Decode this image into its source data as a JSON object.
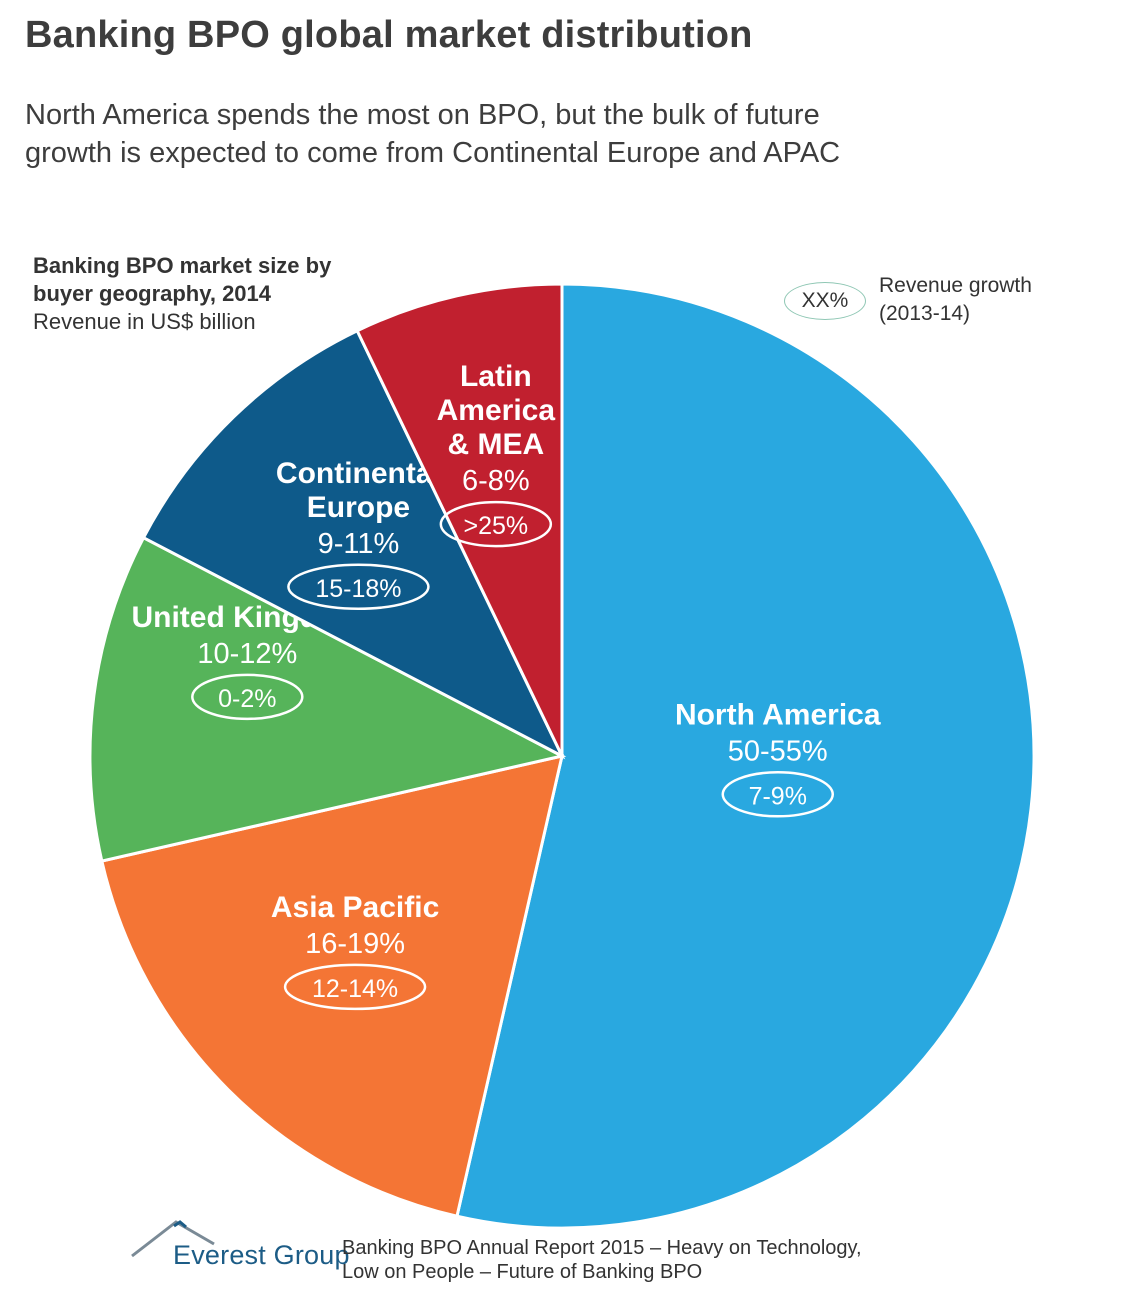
{
  "header": {
    "title": "Banking BPO global market distribution",
    "subtitle_line1": "North America spends the most on BPO, but the bulk of future",
    "subtitle_line2": "growth is expected to come from Continental Europe and APAC"
  },
  "caption": {
    "line1": "Banking BPO market size by",
    "line2": "buyer geography, 2014",
    "line3": "Revenue in US$ billion"
  },
  "legend": {
    "oval_label": "XX%",
    "text_line1": "Revenue growth",
    "text_line2": "(2013-14)"
  },
  "chart_data": {
    "type": "pie",
    "title": "Banking BPO market size by buyer geography, 2014",
    "unit": "Revenue in US$ billion",
    "slices": [
      {
        "name_lines": [
          "North America"
        ],
        "share_label": "50-55%",
        "growth_label": "7-9%",
        "value": 52.5,
        "color": "#29a8e0"
      },
      {
        "name_lines": [
          "Asia Pacific"
        ],
        "share_label": "16-19%",
        "growth_label": "12-14%",
        "value": 17.5,
        "color": "#f47535"
      },
      {
        "name_lines": [
          "United Kingdom"
        ],
        "share_label": "10-12%",
        "growth_label": "0-2%",
        "value": 11,
        "color": "#56b45a"
      },
      {
        "name_lines": [
          "Continental",
          "Europe"
        ],
        "share_label": "9-11%",
        "growth_label": "15-18%",
        "value": 10,
        "color": "#0e5a8a"
      },
      {
        "name_lines": [
          "Latin",
          "America",
          "& MEA"
        ],
        "share_label": "6-8%",
        "growth_label": ">25%",
        "value": 7,
        "color": "#c1202f"
      }
    ]
  },
  "footer": {
    "logo_text": "Everest Group",
    "source_line1": "Banking BPO Annual Report 2015 – Heavy on Technology,",
    "source_line2": "Low on People – Future of Banking BPO"
  }
}
